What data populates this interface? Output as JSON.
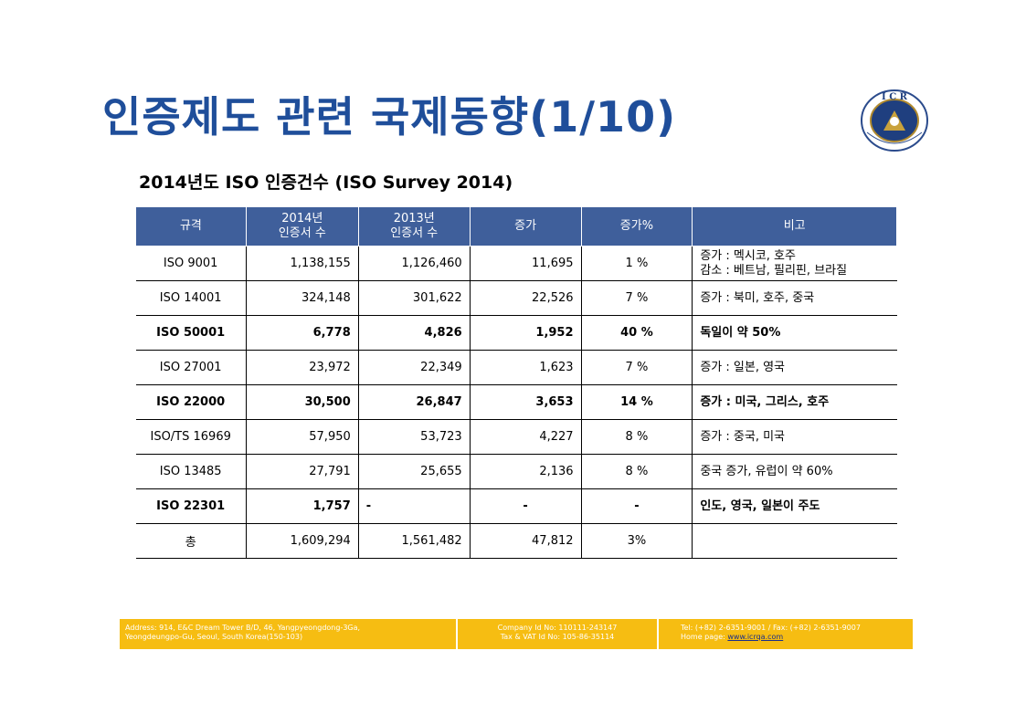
{
  "title": "인증제도 관련 국제동향(1/10)",
  "logo": {
    "letters": "I C R",
    "ring_text": "INTERNATIONAL CERTIFICATION REGISTRAR"
  },
  "subtitle": "2014년도 ISO 인증건수 (ISO Survey 2014)",
  "table": {
    "headers": [
      [
        "규격"
      ],
      [
        "2014년",
        "인증서 수"
      ],
      [
        "2013년",
        "인증서 수"
      ],
      [
        "증가"
      ],
      [
        "증가%"
      ],
      [
        "비고"
      ]
    ],
    "rows": [
      {
        "std": "ISO 9001",
        "y2014": "1,138,155",
        "y2013": "1,126,460",
        "inc": "11,695",
        "pct": "1 %",
        "note1": "증가 : 멕시코, 호주",
        "note2": "감소 : 베트남, 필리핀, 브라질",
        "bold": false
      },
      {
        "std": "ISO 14001",
        "y2014": "324,148",
        "y2013": "301,622",
        "inc": "22,526",
        "pct": "7 %",
        "note1": "증가 : 북미, 호주, 중국",
        "note2": "",
        "bold": false
      },
      {
        "std": "ISO 50001",
        "y2014": "6,778",
        "y2013": "4,826",
        "inc": "1,952",
        "pct": "40 %",
        "note1": "독일이 약 50%",
        "note2": "",
        "bold": true
      },
      {
        "std": "ISO 27001",
        "y2014": "23,972",
        "y2013": "22,349",
        "inc": "1,623",
        "pct": "7 %",
        "note1": "증가 : 일본, 영국",
        "note2": "",
        "bold": false
      },
      {
        "std": "ISO 22000",
        "y2014": "30,500",
        "y2013": "26,847",
        "inc": "3,653",
        "pct": "14 %",
        "note1": "증가 : 미국, 그리스, 호주",
        "note2": "",
        "bold": true
      },
      {
        "std": "ISO/TS 16969",
        "y2014": "57,950",
        "y2013": "53,723",
        "inc": "4,227",
        "pct": "8 %",
        "note1": "증가 : 중국, 미국",
        "note2": "",
        "bold": false
      },
      {
        "std": "ISO 13485",
        "y2014": "27,791",
        "y2013": "25,655",
        "inc": "2,136",
        "pct": "8 %",
        "note1": "중국 증가, 유럽이 약 60%",
        "note2": "",
        "bold": false
      },
      {
        "std": "ISO 22301",
        "y2014": "1,757",
        "y2013": "-",
        "inc": "-",
        "pct": "-",
        "note1": "인도, 영국, 일본이 주도",
        "note2": "",
        "bold": true
      },
      {
        "std": "총",
        "y2014": "1,609,294",
        "y2013": "1,561,482",
        "inc": "47,812",
        "pct": "3%",
        "note1": "",
        "note2": "",
        "bold": false
      }
    ]
  },
  "footer": {
    "address_line1": "Address: 914, E&C Dream Tower B/D, 46, Yangpyeongdong-3Ga,",
    "address_line2": "Yeongdeungpo-Gu, Seoul, South Korea(150-103)",
    "company_line1": "Company Id No: 110111-243147",
    "company_line2": "Tax & VAT Id No: 105-86-35114",
    "contact_line1": "Tel: (+82) 2-6351-9001 / Fax: (+82) 2-6351-9007",
    "home_label": "Home page: ",
    "home_url": "www.icrqa.com"
  },
  "colors": {
    "title": "#1f4e9a",
    "header_bg": "#3f5f9b",
    "footer_bg": "#f6bd12"
  }
}
